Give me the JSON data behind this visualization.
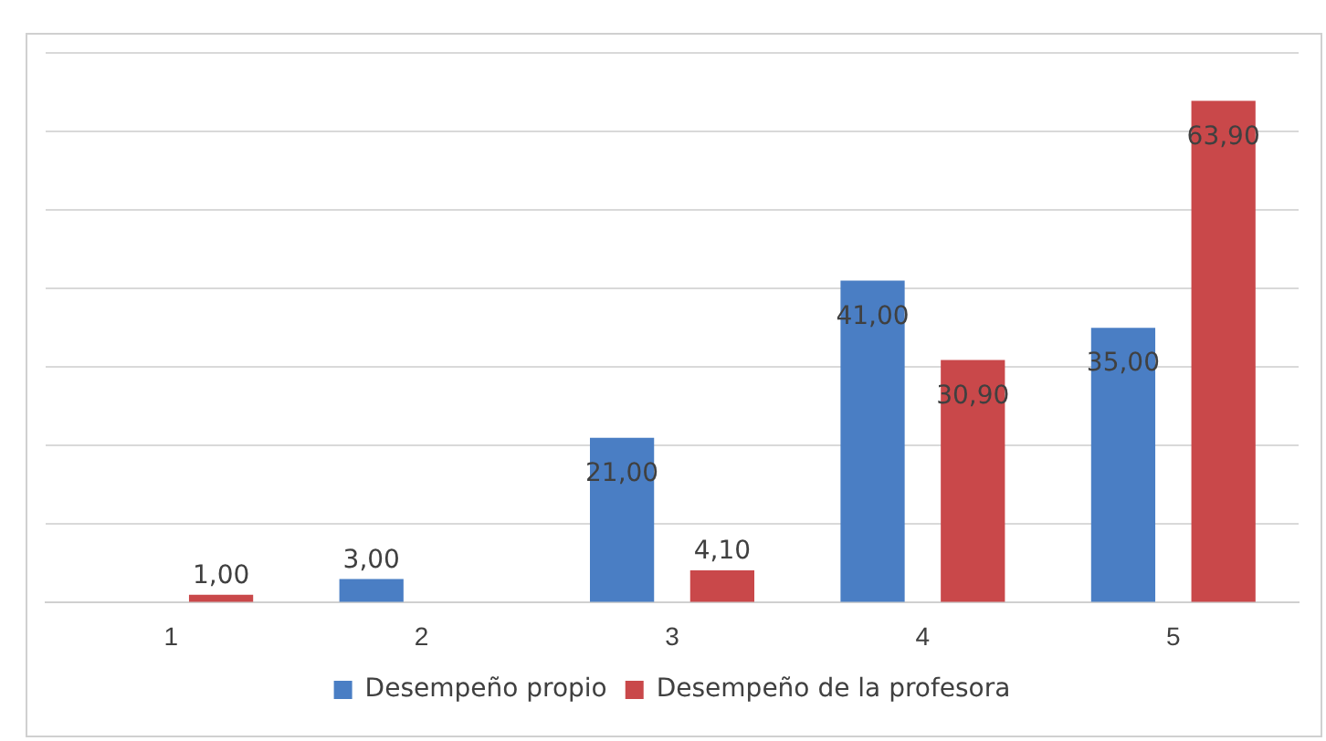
{
  "chart_data": {
    "type": "bar",
    "categories": [
      "1",
      "2",
      "3",
      "4",
      "5"
    ],
    "series": [
      {
        "name": "Desempeño propio",
        "color": "#4a7ec4",
        "values": [
          null,
          3,
          21,
          41,
          35
        ],
        "value_labels": [
          null,
          "3,00",
          "21,00",
          "41,00",
          "35,00"
        ]
      },
      {
        "name": "Desempeño de la profesora",
        "color": "#c9484a",
        "values": [
          1,
          null,
          4.1,
          30.9,
          63.9
        ],
        "value_labels": [
          "1,00",
          null,
          "4,10",
          "30,90",
          "63,90"
        ]
      }
    ],
    "ylim": [
      0,
      70
    ],
    "yticks": [
      {
        "value": 0,
        "label": null
      },
      {
        "value": 10,
        "label": null
      },
      {
        "value": 20,
        "label": null
      },
      {
        "value": 30,
        "label": null
      },
      {
        "value": 40,
        "label": null
      },
      {
        "value": 50,
        "label": null
      },
      {
        "value": 60,
        "label": null
      },
      {
        "value": 70,
        "label": null
      }
    ],
    "tick_labels": "x",
    "grid": "y",
    "legend": "bottom"
  }
}
